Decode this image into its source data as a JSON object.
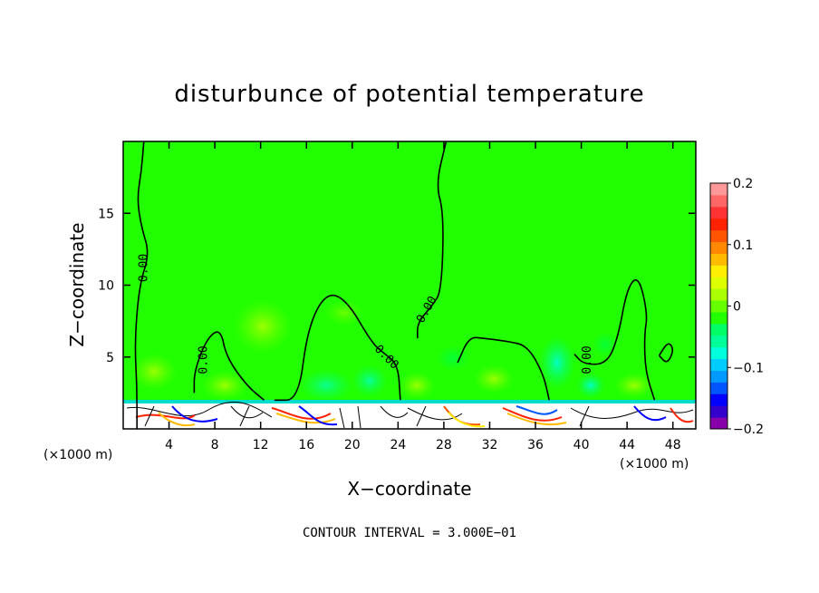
{
  "chart_data": {
    "type": "heatmap",
    "title": "disturbunce of potential temperature",
    "xlabel": "X−coordinate",
    "ylabel": "Z−coordinate",
    "x_unit": "(×1000 m)",
    "z_unit": "(×1000 m)",
    "xlim": [
      0,
      50
    ],
    "ylim": [
      0,
      20
    ],
    "xticks": [
      4,
      8,
      12,
      16,
      20,
      24,
      28,
      32,
      36,
      40,
      44,
      48
    ],
    "xtick_labels": [
      "4",
      "8",
      "12",
      "16",
      "20",
      "24",
      "28",
      "32",
      "36",
      "40",
      "44",
      "48"
    ],
    "yticks": [
      5,
      10,
      15
    ],
    "ytick_labels": [
      "5",
      "10",
      "15"
    ],
    "colorbar": {
      "min": -0.2,
      "max": 0.2,
      "ticks": [
        0.2,
        0.1,
        0,
        -0.1,
        -0.2
      ],
      "tick_labels": [
        "0.2",
        "0.1",
        "0",
        "−0.1",
        "−0.2"
      ],
      "colors": [
        "#8800aa",
        "#3300cc",
        "#0000ff",
        "#0055ff",
        "#0099ff",
        "#00ccff",
        "#00ffdd",
        "#00ff99",
        "#00ff66",
        "#22ff00",
        "#66ff00",
        "#aaff00",
        "#ddff00",
        "#ffee00",
        "#ffbb00",
        "#ff8800",
        "#ff5500",
        "#ff2200",
        "#ff3333",
        "#ff6666",
        "#ff9999"
      ]
    },
    "background_color": "#22ff00",
    "contour_value_label": "0.00",
    "contour_note": "CONTOUR INTERVAL = 3.000E−01",
    "zero_contours": [
      [
        [
          1.2,
          0
        ],
        [
          1.2,
          3
        ],
        [
          1.0,
          6
        ],
        [
          1.4,
          10
        ],
        [
          2.3,
          12.2
        ],
        [
          1.6,
          14
        ],
        [
          1.2,
          16
        ],
        [
          1.6,
          18
        ],
        [
          1.8,
          20
        ]
      ],
      [
        [
          6.2,
          2.5
        ],
        [
          6.2,
          4
        ],
        [
          7.3,
          6.3
        ],
        [
          8.5,
          7
        ],
        [
          9,
          5
        ],
        [
          10.8,
          3
        ],
        [
          12.3,
          2
        ]
      ],
      [
        [
          13.2,
          2
        ],
        [
          15.3,
          2
        ],
        [
          16.1,
          7
        ],
        [
          17.7,
          9.5
        ],
        [
          19.5,
          9
        ],
        [
          21.7,
          6
        ],
        [
          22.7,
          5.3
        ],
        [
          24,
          4.5
        ],
        [
          24.2,
          2
        ]
      ],
      [
        [
          25.7,
          6.3
        ],
        [
          25.7,
          7.4
        ],
        [
          27,
          8.6
        ],
        [
          27.8,
          9.6
        ],
        [
          28,
          15
        ],
        [
          27.3,
          17
        ],
        [
          28.2,
          20
        ]
      ],
      [
        [
          29.2,
          4.6
        ],
        [
          30.2,
          6.4
        ],
        [
          31.5,
          6.3
        ],
        [
          33.5,
          6.1
        ],
        [
          35.3,
          5.8
        ],
        [
          36.7,
          3.8
        ],
        [
          37.2,
          2
        ]
      ],
      [
        [
          39.4,
          5.2
        ],
        [
          40.2,
          4.5
        ],
        [
          42.2,
          4.5
        ],
        [
          43.2,
          6.3
        ],
        [
          44,
          9.8
        ],
        [
          45,
          10.7
        ],
        [
          45.8,
          8
        ],
        [
          45.5,
          6.5
        ],
        [
          45.6,
          4
        ],
        [
          46.4,
          2
        ]
      ],
      [
        [
          46.8,
          5.1
        ],
        [
          47.6,
          6.1
        ],
        [
          48.1,
          5.5
        ],
        [
          47.5,
          4.5
        ],
        [
          46.8,
          5.1
        ]
      ]
    ],
    "label_positions": [
      {
        "x": 1.8,
        "z": 11.2,
        "angle": -90
      },
      {
        "x": 7.0,
        "z": 4.8,
        "angle": -90
      },
      {
        "x": 23.0,
        "z": 5.0,
        "angle": 45
      },
      {
        "x": 26.5,
        "z": 8.3,
        "angle": -60
      },
      {
        "x": 40.5,
        "z": 4.8,
        "angle": -90
      }
    ]
  }
}
